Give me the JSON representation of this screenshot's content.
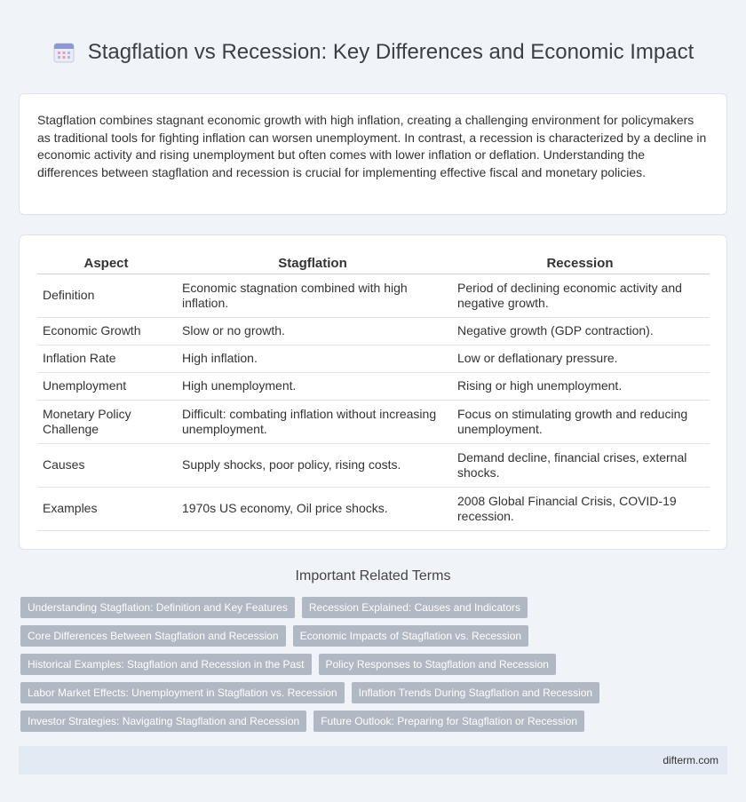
{
  "header": {
    "title": "Stagflation vs Recession: Key Differences and Economic Impact",
    "icon": "calendar-icon"
  },
  "intro": {
    "text": "Stagflation combines stagnant economic growth with high inflation, creating a challenging environment for policymakers as traditional tools for fighting inflation can worsen unemployment. In contrast, a recession is characterized by a decline in economic activity and rising unemployment but often comes with lower inflation or deflation. Understanding the differences between stagflation and recession is crucial for implementing effective fiscal and monetary policies."
  },
  "table": {
    "headers": [
      "Aspect",
      "Stagflation",
      "Recession"
    ],
    "rows": [
      [
        "Definition",
        "Economic stagnation combined with high inflation.",
        "Period of declining economic activity and negative growth."
      ],
      [
        "Economic Growth",
        "Slow or no growth.",
        "Negative growth (GDP contraction)."
      ],
      [
        "Inflation Rate",
        "High inflation.",
        "Low or deflationary pressure."
      ],
      [
        "Unemployment",
        "High unemployment.",
        "Rising or high unemployment."
      ],
      [
        "Monetary Policy Challenge",
        "Difficult: combating inflation without increasing unemployment.",
        "Focus on stimulating growth and reducing unemployment."
      ],
      [
        "Causes",
        "Supply shocks, poor policy, rising costs.",
        "Demand decline, financial crises, external shocks."
      ],
      [
        "Examples",
        "1970s US economy, Oil price shocks.",
        "2008 Global Financial Crisis, COVID-19 recession."
      ]
    ]
  },
  "related": {
    "title": "Important Related Terms",
    "rows": [
      [
        "Understanding Stagflation: Definition and Key Features",
        "Recession Explained: Causes and Indicators"
      ],
      [
        "Core Differences Between Stagflation and Recession",
        "Economic Impacts of Stagflation vs. Recession"
      ],
      [
        "Historical Examples: Stagflation and Recession in the Past",
        "Policy Responses to Stagflation and Recession"
      ],
      [
        "Labor Market Effects: Unemployment in Stagflation vs. Recession",
        "Inflation Trends During Stagflation and Recession"
      ],
      [
        "Investor Strategies: Navigating Stagflation and Recession",
        "Future Outlook: Preparing for Stagflation or Recession"
      ]
    ]
  },
  "footer": {
    "site": "difterm.com"
  },
  "colors": {
    "background": "#f0f4f9",
    "tag": "#b0b8c3",
    "footer": "#e3eaf4"
  }
}
